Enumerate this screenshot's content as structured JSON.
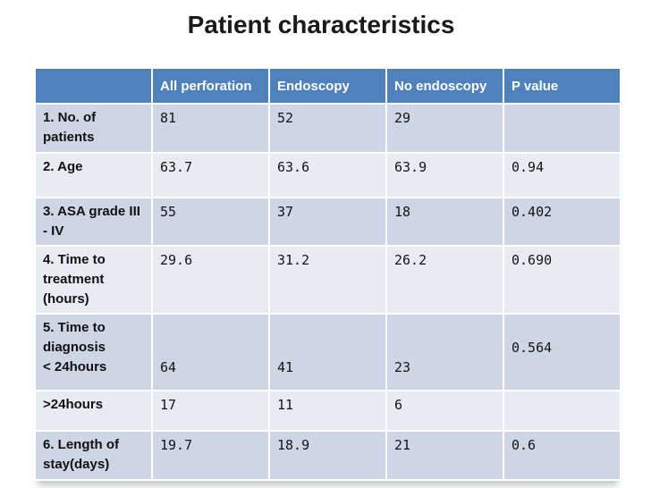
{
  "title": "Patient characteristics",
  "colors": {
    "header_bg": "#4F81BD",
    "band_dark": "#CED5E4",
    "band_light": "#E9EBF3",
    "header_text": "#FFFFFF",
    "body_text": "#141414"
  },
  "table": {
    "headers": [
      "",
      "All perforation",
      "Endoscopy",
      "No endoscopy",
      "P value"
    ],
    "rows": [
      {
        "label": "1. No. of\npatients",
        "cells": [
          "81",
          "52",
          "29",
          ""
        ]
      },
      {
        "label": "2. Age",
        "cells": [
          "63.7",
          "63.6",
          "63.9",
          "0.94"
        ]
      },
      {
        "label": "3. ASA grade III\n- IV",
        "cells": [
          "55",
          "37",
          "18",
          "0.402"
        ]
      },
      {
        "label": "4. Time to\ntreatment\n(hours)",
        "cells": [
          "29.6",
          "31.2",
          "26.2",
          "0.690"
        ]
      },
      {
        "label": "5. Time to\ndiagnosis\n< 24hours",
        "cells": [
          "\n\n64",
          "\n\n41",
          "\n\n23",
          "\n0.564"
        ]
      },
      {
        "label": ">24hours",
        "cells": [
          "17",
          "11",
          "6",
          ""
        ]
      },
      {
        "label": "6. Length of\nstay(days)",
        "cells": [
          "19.7",
          "18.9",
          "21",
          "0.6"
        ]
      }
    ]
  }
}
